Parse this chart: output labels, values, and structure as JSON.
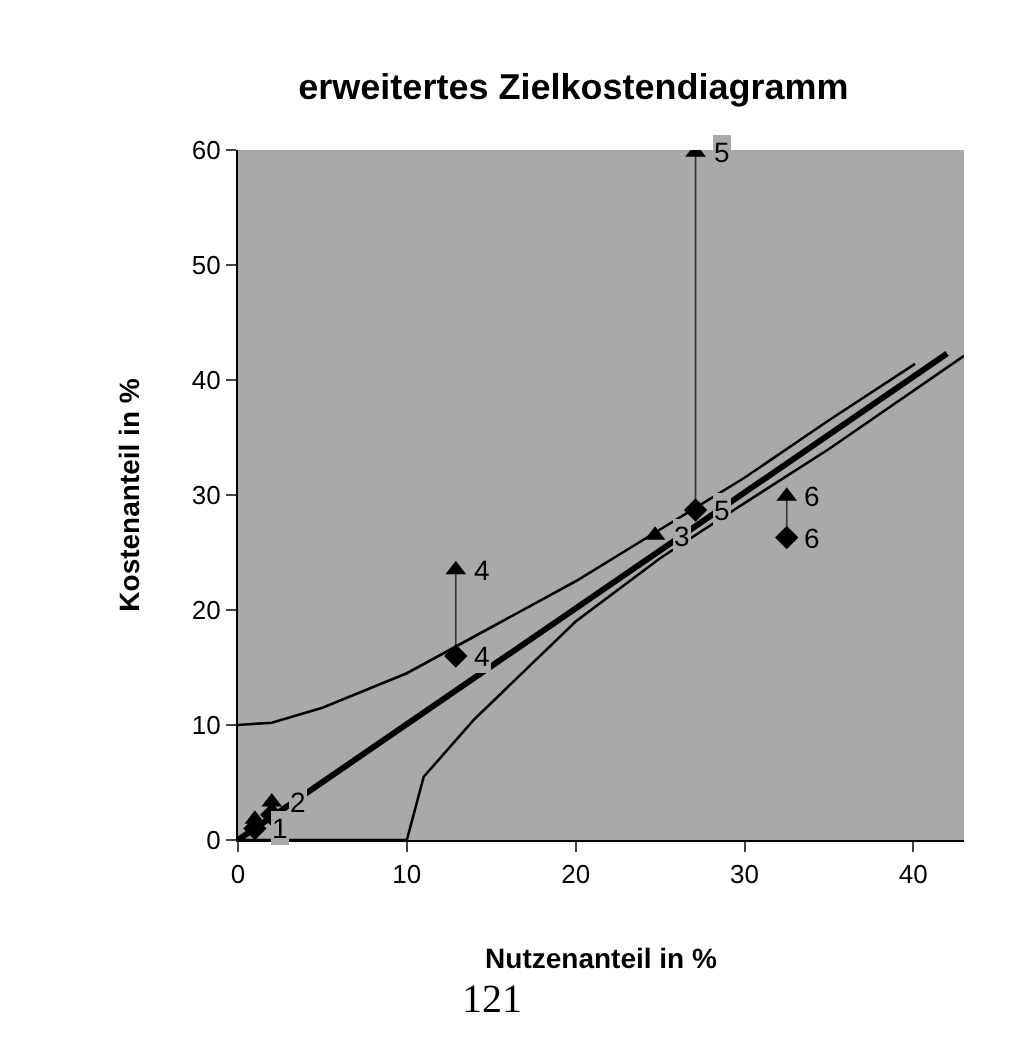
{
  "chart_data": {
    "type": "scatter",
    "title": "erweitertes Zielkostendiagramm",
    "xlabel": "Nutzenanteil in %",
    "ylabel": "Kostenanteil in %",
    "xlim": [
      0,
      43
    ],
    "xticks": [
      0,
      10,
      20,
      30,
      40
    ],
    "ylim": [
      0,
      60
    ],
    "yticks": [
      0,
      10,
      20,
      30,
      40,
      50,
      60
    ],
    "grid": false,
    "series": [
      {
        "type": "line",
        "color": "#000000",
        "marker": "none",
        "x": [
          0,
          42
        ],
        "values": [
          0,
          42.3
        ]
      },
      {
        "type": "line",
        "color": "#000000",
        "marker": "none",
        "x": [
          0,
          2,
          5,
          10,
          15,
          20,
          25,
          30,
          35,
          40.1
        ],
        "values": [
          10,
          10.2,
          11.5,
          14.5,
          18.5,
          22.5,
          27,
          31.5,
          36.5,
          41.4
        ]
      },
      {
        "type": "line",
        "color": "#000000",
        "marker": "none",
        "x": [
          0,
          9.5,
          10,
          11,
          14,
          20,
          25,
          30,
          35,
          43
        ],
        "values": [
          0,
          0,
          0,
          5.5,
          10.5,
          19,
          24.5,
          29.3,
          34,
          42.1
        ]
      },
      {
        "color": "#000000",
        "marker": "triangle",
        "x": [
          1,
          2,
          12.9,
          24.7,
          27.1,
          32.5
        ],
        "values": [
          1.8,
          3.3,
          23.5,
          26.5,
          59.8,
          29.9
        ]
      },
      {
        "color": "#000000",
        "marker": "diamond",
        "x": [
          1,
          2,
          12.9,
          24.7,
          27.1,
          32.5
        ],
        "values": [
          1,
          2.2,
          16,
          null,
          28.7,
          26.3
        ]
      }
    ],
    "annotations": [
      {
        "text": "1",
        "x": 1,
        "y": 1
      },
      {
        "text": "2",
        "x": 2,
        "y": 3.3
      },
      {
        "text": "3",
        "x": 24.7,
        "y": 26.5
      },
      {
        "text": "4",
        "x": 12.9,
        "y": 23.5
      },
      {
        "text": "4",
        "x": 12.9,
        "y": 16
      },
      {
        "text": "5",
        "x": 27.1,
        "y": 59.8
      },
      {
        "text": "5",
        "x": 27.1,
        "y": 28.7
      },
      {
        "text": "6",
        "x": 32.5,
        "y": 29.9
      },
      {
        "text": "6",
        "x": 32.5,
        "y": 26.3
      },
      "121"
    ]
  }
}
